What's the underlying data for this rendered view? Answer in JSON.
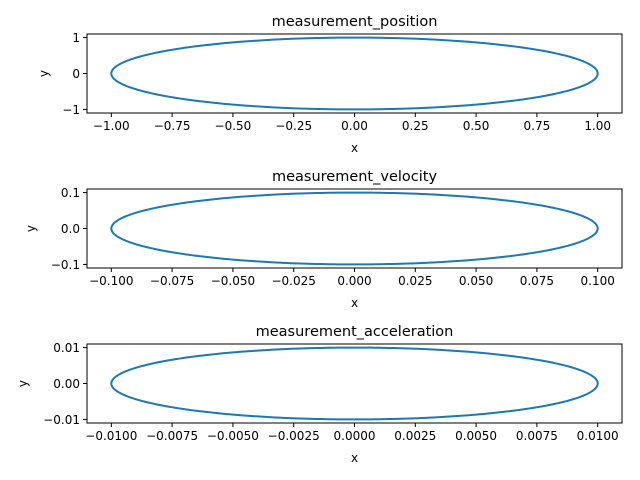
{
  "chart_data": [
    {
      "type": "line",
      "title": "measurement_position",
      "xlabel": "x",
      "ylabel": "y",
      "xlim": [
        -1.1,
        1.1
      ],
      "ylim": [
        -1.1,
        1.1
      ],
      "xticks": [
        -1.0,
        -0.75,
        -0.5,
        -0.25,
        0.0,
        0.25,
        0.5,
        0.75,
        1.0
      ],
      "xtick_labels": [
        "−1.00",
        "−0.75",
        "−0.50",
        "−0.25",
        "0.00",
        "0.25",
        "0.50",
        "0.75",
        "1.00"
      ],
      "yticks": [
        -1,
        0,
        1
      ],
      "ytick_labels": [
        "−1",
        "0",
        "1"
      ],
      "series": [
        {
          "shape": "ellipse",
          "x_amplitude": 1.0,
          "y_amplitude": 1.0,
          "color": "#1f77b4"
        }
      ]
    },
    {
      "type": "line",
      "title": "measurement_velocity",
      "xlabel": "x",
      "ylabel": "y",
      "xlim": [
        -0.11,
        0.11
      ],
      "ylim": [
        -0.11,
        0.11
      ],
      "xticks": [
        -0.1,
        -0.075,
        -0.05,
        -0.025,
        0.0,
        0.025,
        0.05,
        0.075,
        0.1
      ],
      "xtick_labels": [
        "−0.100",
        "−0.075",
        "−0.050",
        "−0.025",
        "0.000",
        "0.025",
        "0.050",
        "0.075",
        "0.100"
      ],
      "yticks": [
        -0.1,
        0.0,
        0.1
      ],
      "ytick_labels": [
        "−0.1",
        "0.0",
        "0.1"
      ],
      "series": [
        {
          "shape": "ellipse",
          "x_amplitude": 0.1,
          "y_amplitude": 0.1,
          "color": "#1f77b4"
        }
      ]
    },
    {
      "type": "line",
      "title": "measurement_acceleration",
      "xlabel": "x",
      "ylabel": "y",
      "xlim": [
        -0.011,
        0.011
      ],
      "ylim": [
        -0.011,
        0.011
      ],
      "xticks": [
        -0.01,
        -0.0075,
        -0.005,
        -0.0025,
        0.0,
        0.0025,
        0.005,
        0.0075,
        0.01
      ],
      "xtick_labels": [
        "−0.0100",
        "−0.0075",
        "−0.0050",
        "−0.0025",
        "0.0000",
        "0.0025",
        "0.0050",
        "0.0075",
        "0.0100"
      ],
      "yticks": [
        -0.01,
        0.0,
        0.01
      ],
      "ytick_labels": [
        "−0.01",
        "0.00",
        "0.01"
      ],
      "series": [
        {
          "shape": "ellipse",
          "x_amplitude": 0.01,
          "y_amplitude": 0.01,
          "color": "#1f77b4"
        }
      ]
    }
  ]
}
